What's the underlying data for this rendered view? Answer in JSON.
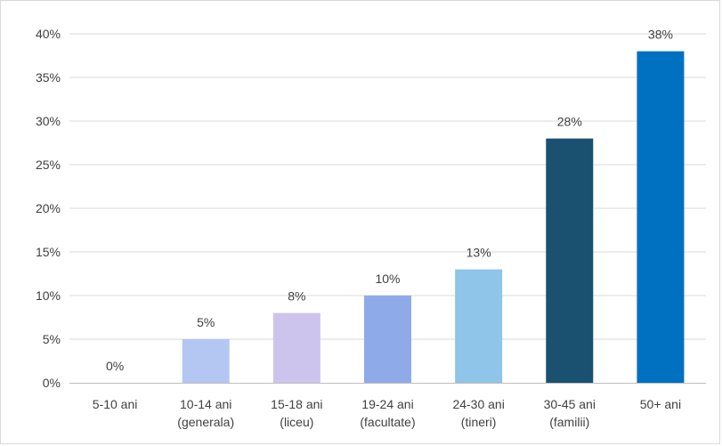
{
  "chart_data": {
    "type": "bar",
    "title": "",
    "xlabel": "",
    "ylabel": "",
    "categories": [
      [
        "5-10 ani"
      ],
      [
        "10-14 ani",
        "(generala)"
      ],
      [
        "15-18 ani",
        "(liceu)"
      ],
      [
        "19-24 ani",
        "(facultate)"
      ],
      [
        "24-30 ani",
        "(tineri)"
      ],
      [
        "30-45 ani",
        "(familii)"
      ],
      [
        "50+ ani"
      ]
    ],
    "values": [
      0,
      5,
      8,
      10,
      13,
      28,
      38
    ],
    "data_labels": [
      "0%",
      "5%",
      "8%",
      "10%",
      "13%",
      "28%",
      "38%"
    ],
    "bar_colors": [
      "#b4c7e7",
      "#b4c7f2",
      "#cdc4ee",
      "#8faae9",
      "#8ec5e8",
      "#1a5070",
      "#0070c0"
    ],
    "ylim": [
      0,
      40
    ],
    "y_ticks": [
      0,
      5,
      10,
      15,
      20,
      25,
      30,
      35,
      40
    ],
    "y_tick_labels": [
      "0%",
      "5%",
      "10%",
      "15%",
      "20%",
      "25%",
      "30%",
      "35%",
      "40%"
    ],
    "grid": true,
    "gridline_color": "#d9d9d9",
    "axis_color": "#bfbfbf",
    "text_color": "#404040",
    "legend": "none"
  }
}
